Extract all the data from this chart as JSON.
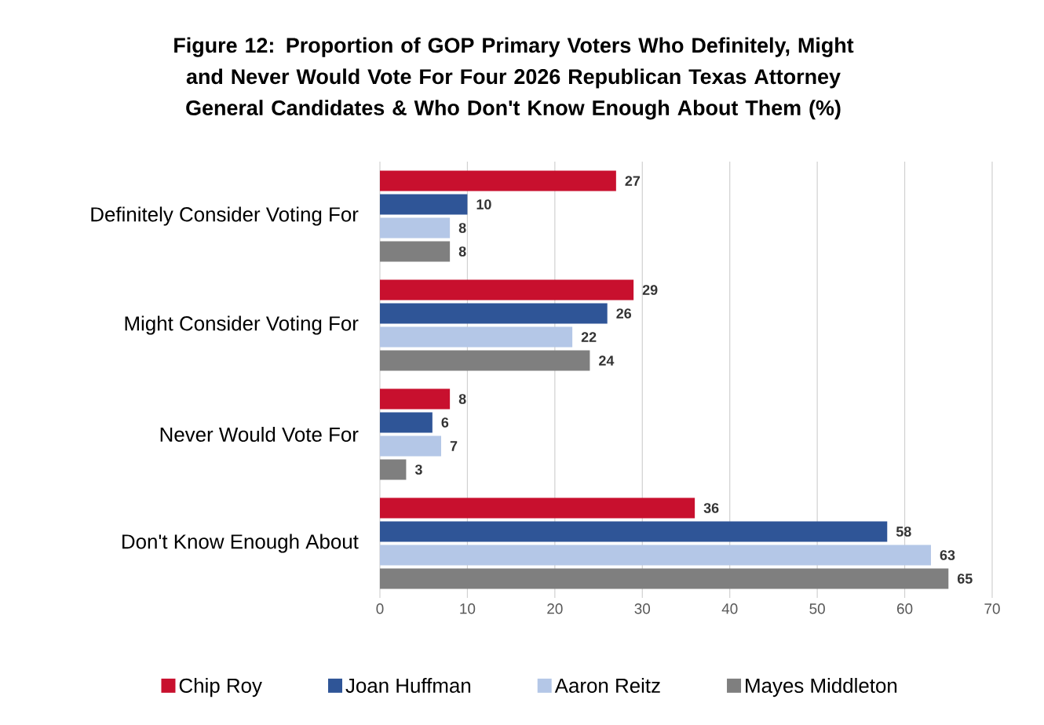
{
  "chart_data": {
    "type": "bar",
    "orientation": "horizontal",
    "title": "Figure 12: Proportion of GOP Primary Voters Who Definitely, Might and Never Would Vote For Four 2026 Republican Texas Attorney General Candidates & Who Don't Know Enough About Them (%)",
    "categories": [
      "Definitely Consider Voting For",
      "Might Consider Voting For",
      "Never Would Vote For",
      "Don't Know Enough About"
    ],
    "series": [
      {
        "name": "Chip Roy",
        "color": "#c8102e",
        "values": [
          27,
          29,
          8,
          36
        ]
      },
      {
        "name": "Joan Huffman",
        "color": "#2f5597",
        "values": [
          10,
          26,
          6,
          58
        ]
      },
      {
        "name": "Aaron Reitz",
        "color": "#b4c7e7",
        "values": [
          8,
          22,
          7,
          63
        ]
      },
      {
        "name": "Mayes Middleton",
        "color": "#7f7f7f",
        "values": [
          8,
          24,
          3,
          65
        ]
      }
    ],
    "xlim": [
      0,
      70
    ],
    "xticks": [
      0,
      10,
      20,
      30,
      40,
      50,
      60,
      70
    ],
    "grid": "x",
    "legend": "bottom",
    "data_labels": true
  }
}
